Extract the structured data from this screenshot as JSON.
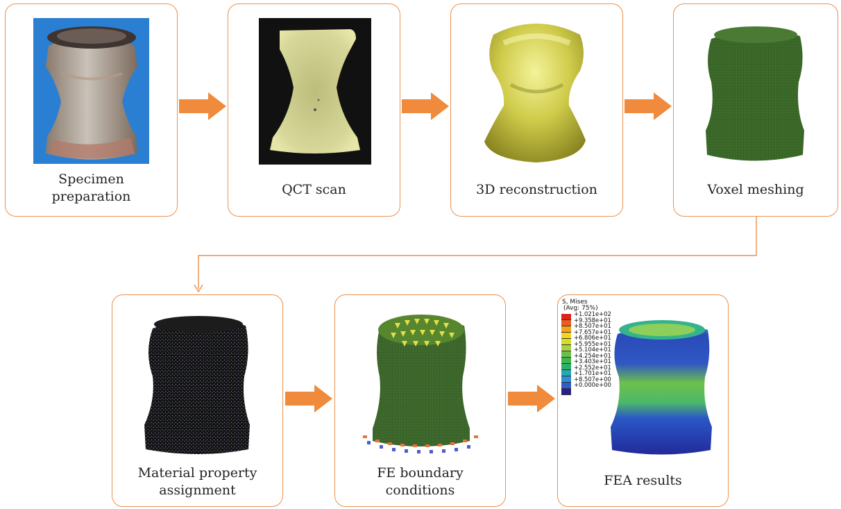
{
  "steps": [
    {
      "label": "Specimen\npreparation",
      "image": "photo-of-specimen"
    },
    {
      "label": "QCT scan",
      "image": "qct-slice"
    },
    {
      "label": "3D reconstruction",
      "image": "3d-surface-model"
    },
    {
      "label": "Voxel meshing",
      "image": "voxel-mesh"
    },
    {
      "label": "Material property\nassignment",
      "image": "material-point-cloud"
    },
    {
      "label": "FE boundary\nconditions",
      "image": "mesh-with-loads-and-constraints"
    },
    {
      "label": "FEA results",
      "image": "von-mises-contour"
    }
  ],
  "legend": {
    "title": "S, Mises",
    "subtitle": "(Avg: 75%)",
    "values": [
      "+1.021e+02",
      "+9.358e+01",
      "+8.507e+01",
      "+7.657e+01",
      "+6.806e+01",
      "+5.955e+01",
      "+5.104e+01",
      "+4.254e+01",
      "+3.403e+01",
      "+2.552e+01",
      "+1.701e+01",
      "+8.507e+00",
      "+0.000e+00"
    ],
    "colors": [
      "#e2231a",
      "#ef5a22",
      "#f6a21d",
      "#f7d21e",
      "#d6de24",
      "#a8d04b",
      "#6cc04a",
      "#3fb54b",
      "#2eae6c",
      "#25a9b0",
      "#2d8fd5",
      "#2f5cc9",
      "#26208c"
    ]
  },
  "colors": {
    "box_border": "#e8914f",
    "arrow": "#f08a3c",
    "connector": "#e8914f"
  }
}
